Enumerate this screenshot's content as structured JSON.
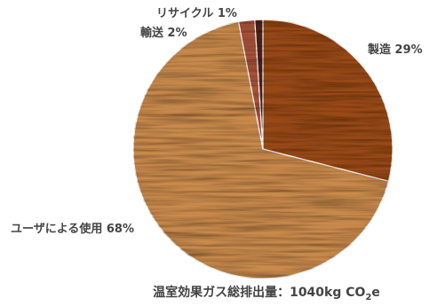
{
  "chart_data": {
    "type": "pie",
    "slices": [
      {
        "label": "製造 29%",
        "value": 29,
        "color": "#9a4a16"
      },
      {
        "label": "ユーザによる使用 68%",
        "value": 68,
        "color": "#c98a4c"
      },
      {
        "label": "輸送 2%",
        "value": 2,
        "color": "#a8533a"
      },
      {
        "label": "リサイクル 1%",
        "value": 1,
        "color": "#4e2318"
      }
    ],
    "total": {
      "prefix": "温室効果ガス総排出量：1040kg CO",
      "subscript": "2",
      "suffix": "e"
    },
    "start_angle": "12 o'clock",
    "direction": "clockwise"
  }
}
